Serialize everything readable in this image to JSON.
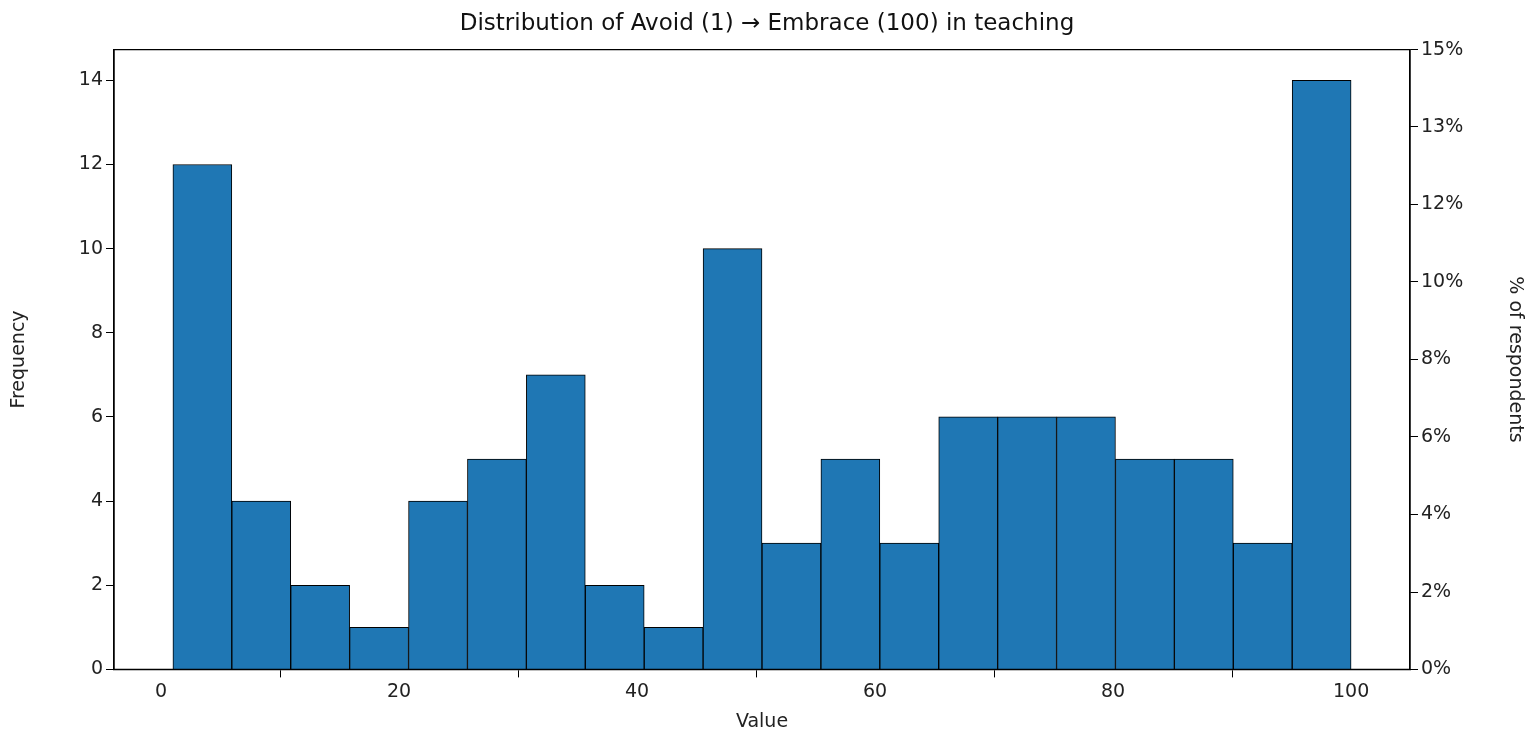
{
  "chart_data": {
    "type": "histogram",
    "title": "Distribution of Avoid (1) → Embrace (100) in teaching",
    "xlabel": "Value",
    "ylabel": "Frequency",
    "y2label": "% of respondents",
    "bins": [
      1,
      5.95,
      10.9,
      15.85,
      20.8,
      25.75,
      30.7,
      35.65,
      40.6,
      45.55,
      50.5,
      55.45,
      60.4,
      65.35,
      70.3,
      75.25,
      80.2,
      85.15,
      90.1,
      95.05,
      100
    ],
    "values": [
      12,
      4,
      2,
      1,
      4,
      5,
      7,
      2,
      1,
      10,
      3,
      5,
      3,
      6,
      6,
      6,
      5,
      5,
      3,
      14
    ],
    "color": "#1f77b4",
    "xlim": [
      -3.95,
      104.95
    ],
    "xticks": [
      0,
      20,
      40,
      60,
      80,
      100
    ],
    "ylim": [
      0,
      14.73
    ],
    "yticks": [
      0,
      2,
      4,
      6,
      8,
      10,
      12,
      14
    ],
    "y2lim": [
      0,
      15.38
    ],
    "y2ticks": [
      {
        "value": 0,
        "label": "0%"
      },
      {
        "value": 1.92,
        "label": "2%"
      },
      {
        "value": 3.85,
        "label": "4%"
      },
      {
        "value": 5.77,
        "label": "6%"
      },
      {
        "value": 7.69,
        "label": "8%"
      },
      {
        "value": 9.62,
        "label": "10%"
      },
      {
        "value": 11.54,
        "label": "12%"
      },
      {
        "value": 13.46,
        "label": "13%"
      },
      {
        "value": 15.38,
        "label": "15%"
      }
    ],
    "grid": false,
    "legend": false
  }
}
